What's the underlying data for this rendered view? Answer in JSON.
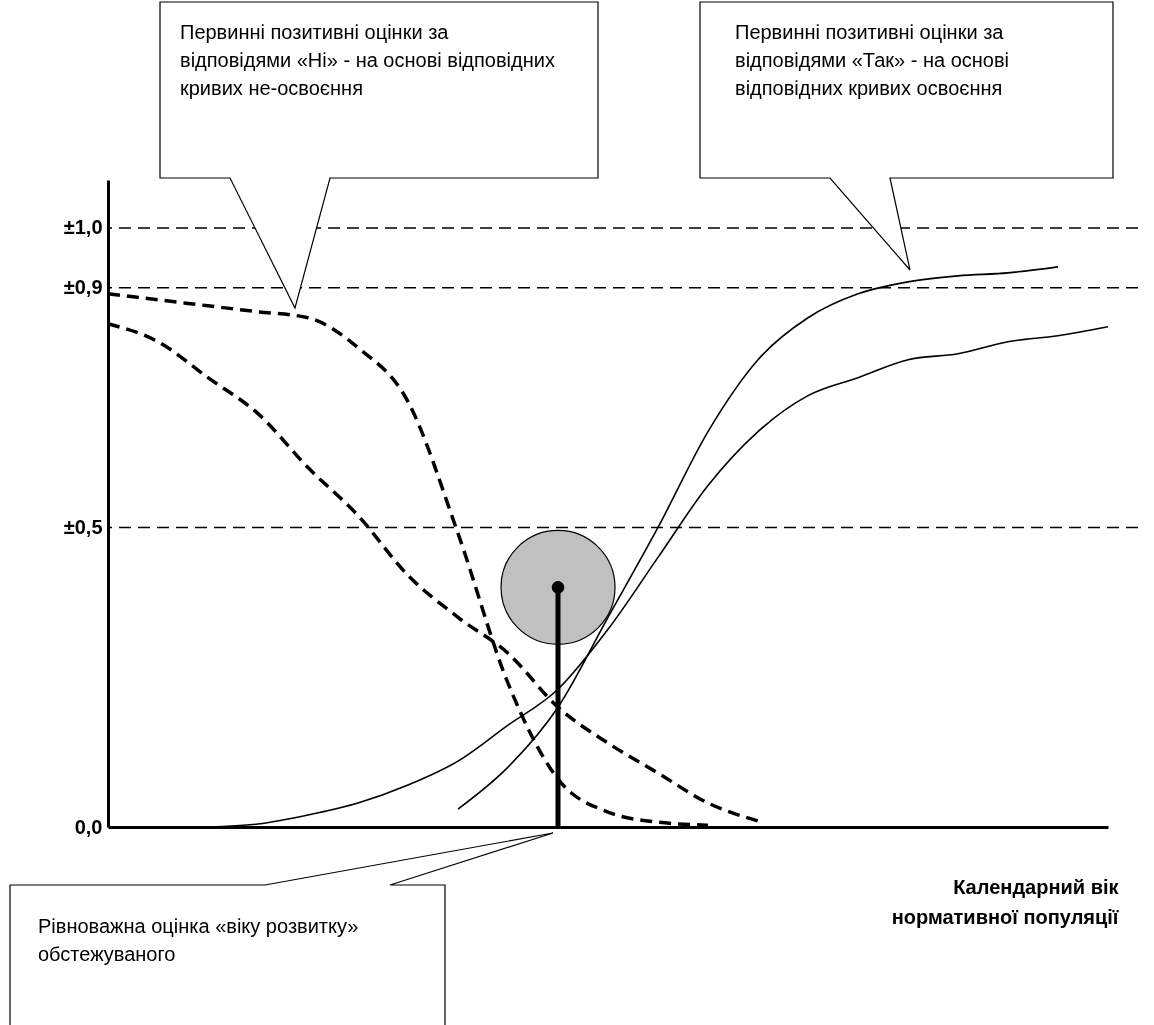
{
  "chart_data": {
    "type": "line",
    "xlabel": "Календарний вік нормативної популяції",
    "annotations": [
      "Первинні позитивні оцінки за відповідями «Ні» - на основі відповідних кривих не-освоєння",
      "Первинні позитивні оцінки за відповідями «Так» - на основі відповідних кривих освоєння",
      "Рівноважна оцінка «віку розвитку» обстежуваного"
    ],
    "categories": [
      null,
      null,
      null,
      null,
      null,
      null,
      null,
      null,
      null,
      null,
      null,
      null,
      null,
      null,
      null,
      null,
      null,
      null,
      null,
      null,
      null
    ],
    "ylim": [
      0,
      1.08
    ],
    "yticks": [
      {
        "value": 0,
        "label": "0,0"
      },
      {
        "value": 0.5,
        "label": "±0,5"
      },
      {
        "value": 0.9,
        "label": "±0,9"
      },
      {
        "value": 1.0,
        "label": "±1,0"
      }
    ],
    "tick_labels": "y",
    "grid": false,
    "marker": "none",
    "ref_lines": [
      {
        "axis": "y",
        "value": 1.0,
        "color": "#000000",
        "line_style": "dashed"
      },
      {
        "axis": "y",
        "value": 0.9,
        "color": "#000000",
        "line_style": "dashed"
      },
      {
        "axis": "y",
        "value": 0.5,
        "color": "#000000",
        "line_style": "dashed"
      }
    ],
    "series": [
      {
        "line_style": "dashed",
        "color": "#000000",
        "values": [
          0.89,
          0.88,
          0.87,
          0.86,
          0.85,
          0.8,
          0.71,
          0.49,
          0.24,
          0.08,
          0.025,
          0.008,
          0.003,
          null,
          null,
          null,
          null,
          null,
          null,
          null,
          null
        ]
      },
      {
        "line_style": "dashed",
        "color": "#000000",
        "values": [
          0.84,
          0.81,
          0.75,
          0.69,
          0.6,
          0.52,
          0.42,
          0.35,
          0.29,
          0.2,
          0.14,
          0.09,
          0.04,
          0.01,
          null,
          null,
          null,
          null,
          null,
          null,
          null
        ]
      },
      {
        "line_style": "solid",
        "color": "#000000",
        "values": [
          null,
          null,
          null,
          null,
          null,
          null,
          null,
          0.03,
          0.1,
          0.2,
          0.35,
          0.5,
          0.66,
          0.78,
          0.85,
          0.89,
          0.91,
          0.92,
          0.925,
          0.935,
          null
        ]
      },
      {
        "line_style": "solid",
        "color": "#000000",
        "values": [
          null,
          null,
          0.0,
          0.005,
          0.02,
          0.04,
          0.07,
          0.11,
          0.17,
          0.23,
          0.33,
          0.45,
          0.57,
          0.66,
          0.72,
          0.75,
          0.78,
          0.79,
          0.81,
          0.82,
          0.835
        ]
      },
      {
        "type": "scatter",
        "marker": "circle",
        "color": "#c0c0c0",
        "values": [
          null,
          null,
          null,
          null,
          null,
          null,
          null,
          null,
          null,
          0.4,
          null,
          null,
          null,
          null,
          null,
          null,
          null,
          null,
          null,
          null,
          null
        ]
      }
    ]
  }
}
